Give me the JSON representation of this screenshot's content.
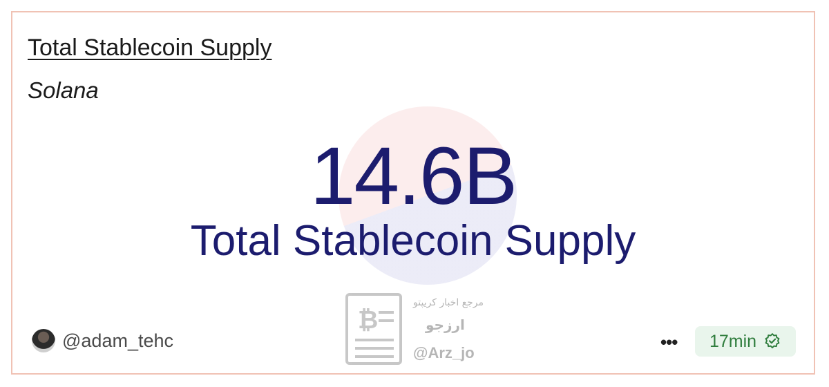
{
  "card": {
    "title": "Total Stablecoin Supply",
    "subtitle": "Solana",
    "metric_value": "14.6B",
    "metric_label": "Total Stablecoin Supply"
  },
  "footer": {
    "author_handle": "@adam_tehc",
    "more_label": "•••",
    "freshness": "17min",
    "verified_icon": "check-badge-icon"
  },
  "watermark": {
    "line1": "مرجع اخبار کریپتو",
    "line2": "ارزجو",
    "handle": "@Arz_jo"
  },
  "colors": {
    "metric": "#1c1c6e",
    "border": "#f0c2b4",
    "badge_bg": "#e9f5ec",
    "badge_text": "#2f7d3d"
  }
}
